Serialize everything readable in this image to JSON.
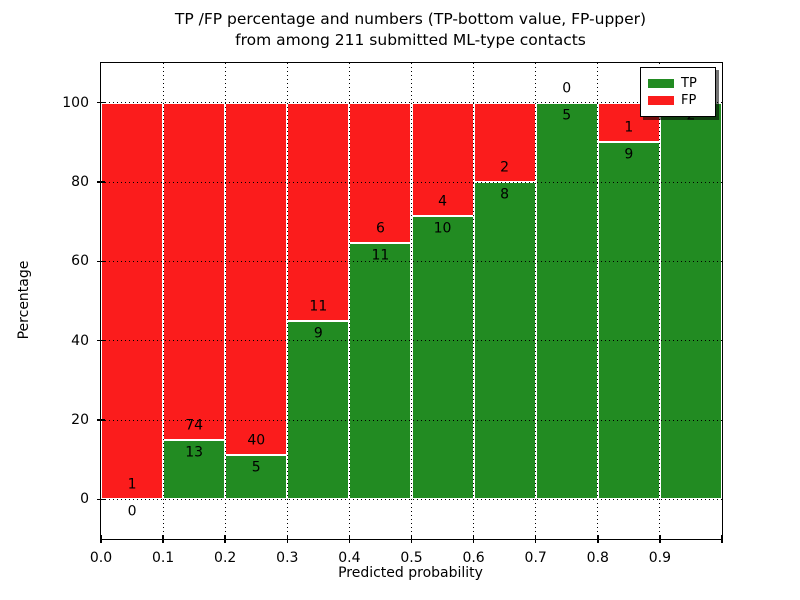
{
  "chart_data": {
    "type": "bar",
    "stacked": true,
    "title": "TP /FP percentage and numbers (TP-bottom value, FP-upper) from among 211 submitted ML-type contacts",
    "title_lines": [
      "TP /FP percentage and numbers (TP-bottom value, FP-upper)",
      "from among 211 submitted ML-type contacts"
    ],
    "xlabel": "Predicted probability",
    "ylabel": "Percentage",
    "total_contacts": 211,
    "xlim": [
      0.0,
      1.0
    ],
    "ylim": [
      -10,
      110
    ],
    "x_tick_labels": [
      "0.0",
      "0.1",
      "0.2",
      "0.3",
      "0.4",
      "0.5",
      "0.6",
      "0.7",
      "0.8",
      "0.9"
    ],
    "y_tick_labels": [
      "0",
      "20",
      "40",
      "60",
      "80",
      "100"
    ],
    "y_tick_values": [
      0,
      20,
      40,
      60,
      80,
      100
    ],
    "grid": true,
    "legend_position": "upper right",
    "legend": [
      {
        "label": "TP",
        "color": "#228b22"
      },
      {
        "label": "FP",
        "color": "#fb1c1c"
      }
    ],
    "colors": {
      "tp": "#228b22",
      "fp": "#fb1c1c"
    },
    "bins": [
      {
        "range": "0.0-0.1",
        "tp_count": 0,
        "fp_count": 1,
        "tp_pct": 0.0,
        "fp_pct": 100.0
      },
      {
        "range": "0.1-0.2",
        "tp_count": 13,
        "fp_count": 74,
        "tp_pct": 14.94,
        "fp_pct": 85.06
      },
      {
        "range": "0.2-0.3",
        "tp_count": 5,
        "fp_count": 40,
        "tp_pct": 11.11,
        "fp_pct": 88.89
      },
      {
        "range": "0.3-0.4",
        "tp_count": 9,
        "fp_count": 11,
        "tp_pct": 45.0,
        "fp_pct": 55.0
      },
      {
        "range": "0.4-0.5",
        "tp_count": 11,
        "fp_count": 6,
        "tp_pct": 64.71,
        "fp_pct": 35.29
      },
      {
        "range": "0.5-0.6",
        "tp_count": 10,
        "fp_count": 4,
        "tp_pct": 71.43,
        "fp_pct": 28.57
      },
      {
        "range": "0.6-0.7",
        "tp_count": 8,
        "fp_count": 2,
        "tp_pct": 80.0,
        "fp_pct": 20.0
      },
      {
        "range": "0.7-0.8",
        "tp_count": 5,
        "fp_count": 0,
        "tp_pct": 100.0,
        "fp_pct": 0.0
      },
      {
        "range": "0.8-0.9",
        "tp_count": 9,
        "fp_count": 1,
        "tp_pct": 90.0,
        "fp_pct": 10.0
      },
      {
        "range": "0.9-1.0",
        "tp_count": 2,
        "fp_count": 0,
        "tp_pct": 100.0,
        "fp_pct": 0.0
      }
    ]
  }
}
